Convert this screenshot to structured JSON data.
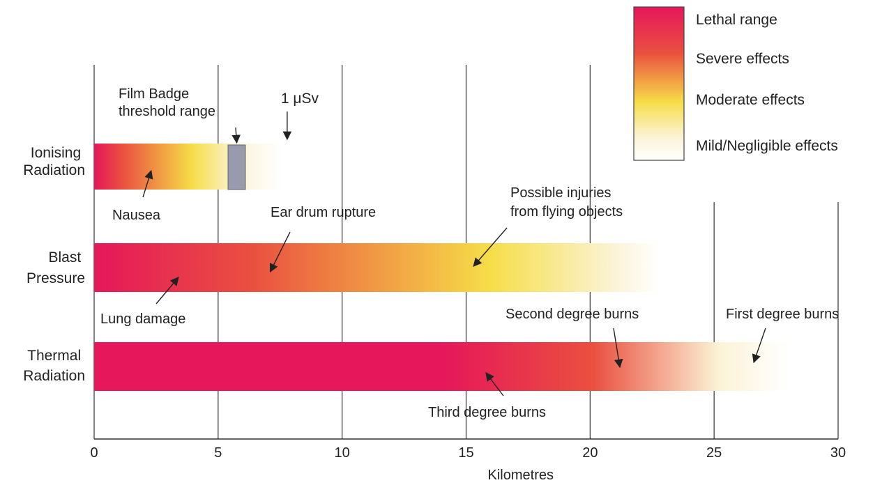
{
  "colors": {
    "lethal": "#e6175a",
    "severe": "#ea5040",
    "moderate": "#f6dd48",
    "mild": "#fbf3d6",
    "badge": "#9a9aae",
    "grid": "#333333"
  },
  "legend": {
    "lethal": "Lethal range",
    "severe": "Severe effects",
    "moderate": "Moderate effects",
    "mild": "Mild/Negligible effects"
  },
  "chart_data": {
    "type": "bar",
    "xlabel": "Kilometres",
    "xlim": [
      0,
      30
    ],
    "ticks": [
      "0",
      "5",
      "10",
      "15",
      "20",
      "25",
      "30"
    ],
    "grid": true,
    "legend_position": "top-right",
    "categories": [
      {
        "key": "ionising",
        "lines": [
          "Ionising",
          "Radiation"
        ],
        "extent_km": 7.6
      },
      {
        "key": "blast",
        "lines": [
          "Blast",
          "Pressure"
        ],
        "extent_km": 22.8
      },
      {
        "key": "thermal",
        "lines": [
          "Thermal",
          "Radiation"
        ],
        "extent_km": 28.0
      }
    ],
    "film_badge_range_km": [
      5.4,
      6.1
    ],
    "annotations": {
      "film_badge": [
        "Film Badge",
        "threshold range"
      ],
      "dose_marker": {
        "text": "1 μSv",
        "x_km": 7.7
      },
      "nausea": {
        "text": "Nausea",
        "x_km": 2.3
      },
      "ear_drum": {
        "text": "Ear drum rupture",
        "x_km": 7.1
      },
      "flying_objects": {
        "lines": [
          "Possible injuries",
          "from flying objects"
        ],
        "x_km": 15.3
      },
      "lung_damage": {
        "text": "Lung damage",
        "x_km": 3.4
      },
      "second_degree": {
        "text": "Second degree burns",
        "x_km": 21.2
      },
      "first_degree": {
        "text": "First degree burns",
        "x_km": 26.6
      },
      "third_degree": {
        "text": "Third degree burns",
        "x_km": 15.8
      }
    }
  }
}
